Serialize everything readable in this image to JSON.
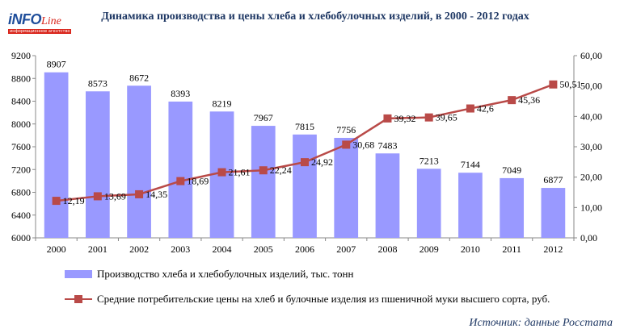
{
  "logo": {
    "main": "iNFO",
    "accent": "Line",
    "sub": "информационное агентство"
  },
  "header": {
    "title": "Динамика производства и цены хлеба и хлебобулочных изделий, в 2000 - 2012 годах"
  },
  "chart_data": {
    "type": "bar",
    "title": "Динамика производства и цены хлеба и хлебобулочных изделий, в 2000 - 2012 годах",
    "categories": [
      "2000",
      "2001",
      "2002",
      "2003",
      "2004",
      "2005",
      "2006",
      "2007",
      "2008",
      "2009",
      "2010",
      "2011",
      "2012"
    ],
    "series": [
      {
        "name": "Производство хлеба и хлебобулочных изделий, тыс. тонн",
        "type": "bar",
        "axis": "left",
        "color": "#9999ff",
        "values": [
          8907,
          8573,
          8672,
          8393,
          8219,
          7967,
          7815,
          7756,
          7483,
          7213,
          7144,
          7049,
          6877
        ],
        "labels": [
          "8907",
          "8573",
          "8672",
          "8393",
          "8219",
          "7967",
          "7815",
          "7756",
          "7483",
          "7213",
          "7144",
          "7049",
          "6877"
        ]
      },
      {
        "name": "Средние потребительские цены на хлеб и булочные изделия из пшеничной муки высшего сорта, руб.",
        "type": "line",
        "axis": "right",
        "color": "#b94a48",
        "values": [
          12.19,
          13.69,
          14.35,
          18.69,
          21.61,
          22.24,
          24.92,
          30.68,
          39.32,
          39.65,
          42.6,
          45.36,
          50.51
        ],
        "labels": [
          "12,19",
          "13,69",
          "14,35",
          "18,69",
          "21,61",
          "22,24",
          "24,92",
          "30,68",
          "39,32",
          "39,65",
          "42,6",
          "45,36",
          "50,51"
        ]
      }
    ],
    "y_left": {
      "min": 6000,
      "max": 9200,
      "ticks": [
        "6000",
        "6400",
        "6800",
        "7200",
        "7600",
        "8000",
        "8400",
        "8800",
        "9200"
      ]
    },
    "y_right": {
      "min": 0,
      "max": 60,
      "ticks": [
        "0,00",
        "10,00",
        "20,00",
        "30,00",
        "40,00",
        "50,00",
        "60,00"
      ]
    },
    "legend_position": "bottom"
  },
  "footer": {
    "source": "Источник: данные Росстата"
  }
}
